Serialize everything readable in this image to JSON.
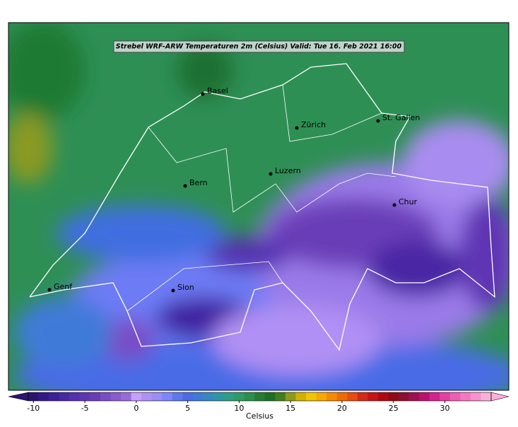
{
  "title": "Strebel WRF-ARW Temperaturen 2m (Celsius)   Valid: Tue 16. Feb 2021 16:00",
  "cities": [
    "Basel",
    "Zürich",
    "St. Gallen",
    "Luzern",
    "Bern",
    "Chur",
    "Genf",
    "Sion"
  ],
  "colorbar": {
    "label": "Celsius",
    "lim": [
      -10.5,
      34.5
    ],
    "ticks": [
      -10,
      -5,
      0,
      5,
      10,
      15,
      20,
      25,
      30
    ],
    "colors": [
      "#2a1470",
      "#33188a",
      "#3d1f98",
      "#4828a4",
      "#5430b0",
      "#5e36b4",
      "#6a3db8",
      "#7a4cc4",
      "#8a5ad0",
      "#9a6ad8",
      "#c4a0ff",
      "#b090f4",
      "#9c8cf8",
      "#7d86ff",
      "#5f78f0",
      "#4a6ce6",
      "#3f7ad8",
      "#3688c0",
      "#2f96a4",
      "#2d9e86",
      "#2f9a66",
      "#2e8e4c",
      "#247d32",
      "#1e6f24",
      "#3f7f1e",
      "#8f9a18",
      "#d0b000",
      "#f0c400",
      "#f8a800",
      "#f88a00",
      "#f06c00",
      "#e84c10",
      "#d82818",
      "#c81414",
      "#b00812",
      "#940814",
      "#8a1034",
      "#a01050",
      "#bc1070",
      "#d42090",
      "#e440a4",
      "#ee5cb4",
      "#f478c0",
      "#f892cc",
      "#fab0da"
    ]
  }
}
